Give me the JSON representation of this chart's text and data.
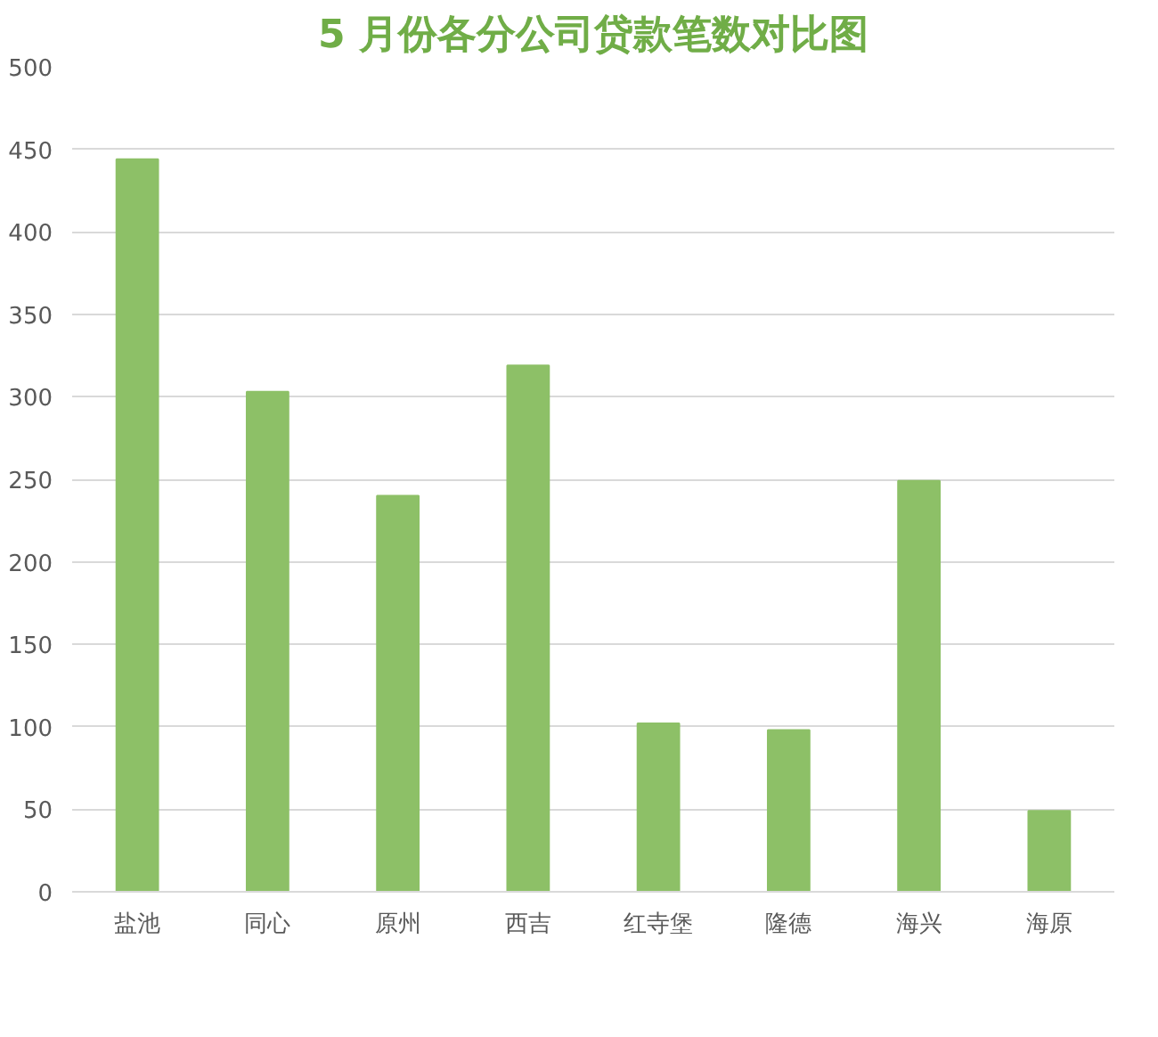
{
  "chart_data": {
    "type": "bar",
    "title": "5 月份各分公司贷款笔数对比图",
    "categories": [
      "盐池",
      "同心",
      "原州",
      "西吉",
      "红寺堡",
      "隆德",
      "海兴",
      "海原"
    ],
    "values": [
      444,
      303,
      240,
      319,
      102,
      98,
      249,
      49
    ],
    "color": "#8dc067",
    "ylim": [
      0,
      500
    ],
    "yticks": [
      0,
      50,
      100,
      150,
      200,
      250,
      300,
      350,
      400,
      450,
      500
    ],
    "grid": "y",
    "legend": false
  }
}
